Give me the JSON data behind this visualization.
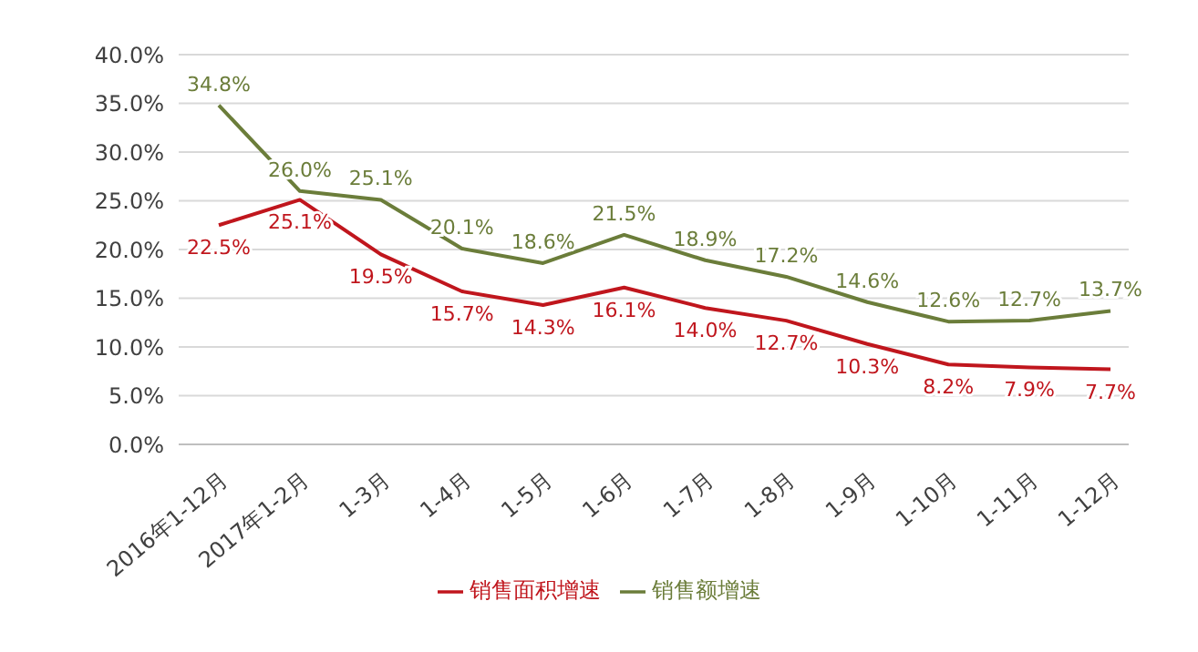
{
  "chart_data": {
    "type": "line",
    "categories": [
      "2016年1-12月",
      "2017年1-2月",
      "1-3月",
      "1-4月",
      "1-5月",
      "1-6月",
      "1-7月",
      "1-8月",
      "1-9月",
      "1-10月",
      "1-11月",
      "1-12月"
    ],
    "series": [
      {
        "name": "销售面积增速",
        "color": "#c0161d",
        "values": [
          22.5,
          25.1,
          19.5,
          15.7,
          14.3,
          16.1,
          14.0,
          12.7,
          10.3,
          8.2,
          7.9,
          7.7
        ],
        "value_labels": [
          "22.5%",
          "25.1%",
          "19.5%",
          "15.7%",
          "14.3%",
          "16.1%",
          "14.0%",
          "12.7%",
          "10.3%",
          "8.2%",
          "7.9%",
          "7.7%"
        ]
      },
      {
        "name": "销售额增速",
        "color": "#6b7d3a",
        "values": [
          34.8,
          26.0,
          25.1,
          20.1,
          18.6,
          21.5,
          18.9,
          17.2,
          14.6,
          12.6,
          12.7,
          13.7
        ],
        "value_labels": [
          "34.8%",
          "26.0%",
          "25.1%",
          "20.1%",
          "18.6%",
          "21.5%",
          "18.9%",
          "17.2%",
          "14.6%",
          "12.6%",
          "12.7%",
          "13.7%"
        ]
      }
    ],
    "ylim": [
      0,
      40
    ],
    "yticks": [
      {
        "value": 0,
        "label": "0.0%"
      },
      {
        "value": 5,
        "label": "5.0%"
      },
      {
        "value": 10,
        "label": "10.0%"
      },
      {
        "value": 15,
        "label": "15.0%"
      },
      {
        "value": 20,
        "label": "20.0%"
      },
      {
        "value": 25,
        "label": "25.0%"
      },
      {
        "value": 30,
        "label": "30.0%"
      },
      {
        "value": 35,
        "label": "35.0%"
      },
      {
        "value": 40,
        "label": "40.0%"
      }
    ],
    "grid": "y",
    "legend": "bottom",
    "marker": "none",
    "line_style": "solid"
  }
}
